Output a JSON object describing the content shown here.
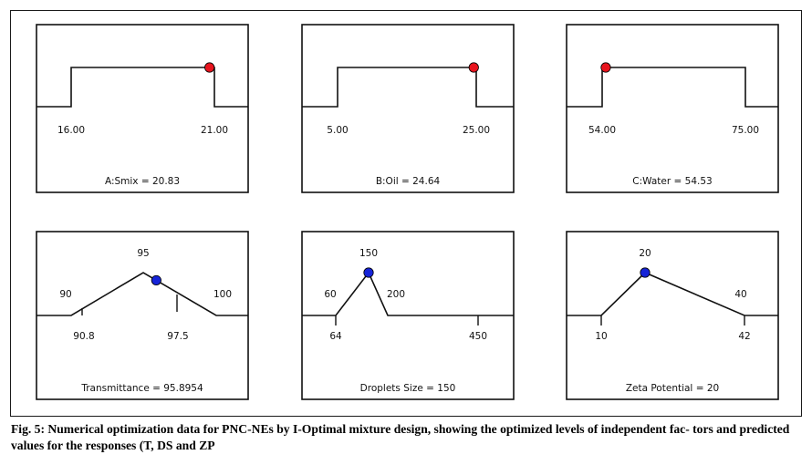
{
  "caption": "Fig. 5: Numerical optimization data for PNC-NEs by I-Optimal mixture design, showing the optimized levels of independent fac- tors and predicted values for the responses (T, DS and ZP",
  "colors": {
    "factor_point": "#e8141e",
    "response_point": "#1624d8",
    "line": "#111111"
  },
  "chart_data": [
    {
      "type": "line",
      "role": "factor",
      "shape": "plateau",
      "tick_labels": [
        "16.00",
        "21.00"
      ],
      "low": 16.0,
      "high": 21.0,
      "value": 20.83,
      "label": "A:Smix = 20.83"
    },
    {
      "type": "line",
      "role": "factor",
      "shape": "plateau",
      "tick_labels": [
        "5.00",
        "25.00"
      ],
      "low": 5.0,
      "high": 25.0,
      "value": 24.64,
      "label": "B:Oil = 24.64"
    },
    {
      "type": "line",
      "role": "factor",
      "shape": "plateau",
      "tick_labels": [
        "54.00",
        "75.00"
      ],
      "low": 54.0,
      "high": 75.0,
      "value": 54.53,
      "label": "C:Water = 54.53"
    },
    {
      "type": "line",
      "role": "response",
      "shape": "target",
      "top_labels": [
        "90",
        "95",
        "100"
      ],
      "bottom_labels": [
        "90.8",
        "97.5"
      ],
      "lower_limit": 90,
      "target": 95,
      "upper_limit": 100,
      "axis_min": 90.8,
      "axis_max": 97.5,
      "value": 95.8954,
      "label": "Transmittance = 95.8954"
    },
    {
      "type": "line",
      "role": "response",
      "shape": "target",
      "top_labels": [
        "60",
        "150",
        "200"
      ],
      "bottom_labels": [
        "64",
        "450"
      ],
      "lower_limit": 60,
      "target": 150,
      "upper_limit": 200,
      "axis_min": 64,
      "axis_max": 450,
      "value": 150,
      "label": "Droplets Size  = 150"
    },
    {
      "type": "line",
      "role": "response",
      "shape": "target",
      "top_labels": [
        "20",
        "40"
      ],
      "bottom_labels": [
        "10",
        "42"
      ],
      "lower_limit": 10,
      "target": 20,
      "upper_limit": 40,
      "axis_min": 10,
      "axis_max": 42,
      "value": 20,
      "label": "Zeta Potential = 20"
    }
  ]
}
